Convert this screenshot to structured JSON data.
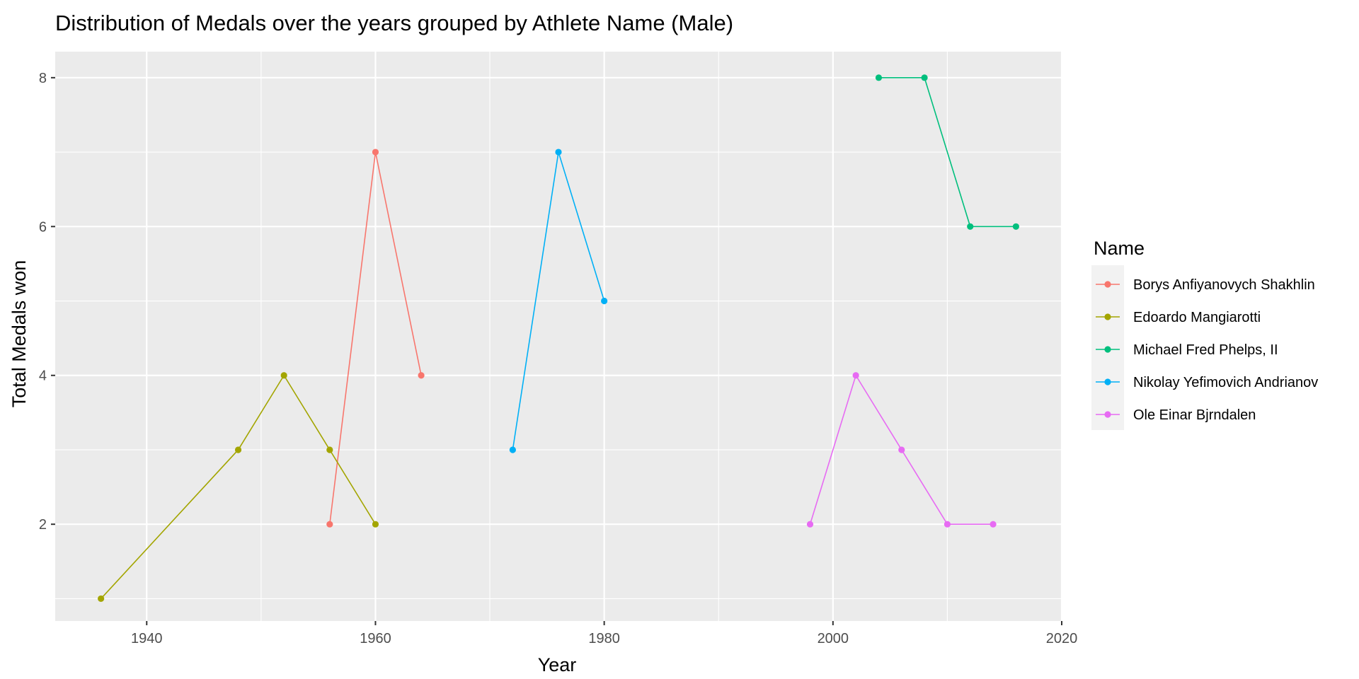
{
  "chart_data": {
    "type": "line",
    "title": "Distribution of Medals over the years grouped by Athlete Name (Male)",
    "xlabel": "Year",
    "ylabel": "Total Medals won",
    "xlim": [
      1932,
      2020
    ],
    "ylim": [
      0.7,
      8.35
    ],
    "x_ticks": [
      1940,
      1960,
      1980,
      2000,
      2020
    ],
    "y_ticks": [
      2,
      4,
      6,
      8
    ],
    "grid": true,
    "legend_title": "Name",
    "legend_position": "right",
    "series": [
      {
        "name": "Borys Anfiyanovych Shakhlin",
        "color": "#F8766D",
        "x": [
          1956,
          1960,
          1964
        ],
        "y": [
          2,
          7,
          4
        ]
      },
      {
        "name": "Edoardo Mangiarotti",
        "color": "#A3A500",
        "x": [
          1936,
          1948,
          1952,
          1956,
          1960
        ],
        "y": [
          1,
          3,
          4,
          3,
          2
        ]
      },
      {
        "name": "Michael Fred Phelps, II",
        "color": "#00BF7D",
        "x": [
          2004,
          2008,
          2012,
          2016
        ],
        "y": [
          8,
          8,
          6,
          6
        ]
      },
      {
        "name": "Nikolay Yefimovich Andrianov",
        "color": "#00B0F6",
        "x": [
          1972,
          1976,
          1980
        ],
        "y": [
          3,
          7,
          5
        ]
      },
      {
        "name": "Ole Einar Bjrndalen",
        "color": "#E76BF3",
        "x": [
          1998,
          2002,
          2006,
          2010,
          2014
        ],
        "y": [
          2,
          4,
          3,
          2,
          2
        ]
      }
    ]
  }
}
